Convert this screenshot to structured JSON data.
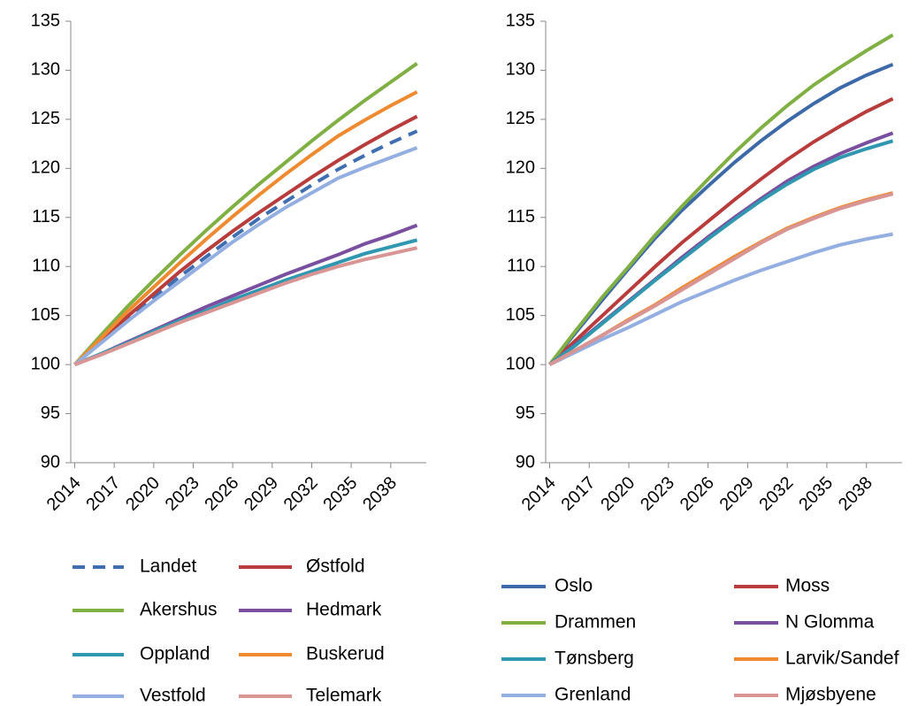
{
  "chart_data": [
    {
      "type": "line",
      "legend": "bottom",
      "x": [
        2014,
        2016,
        2018,
        2020,
        2022,
        2024,
        2026,
        2028,
        2030,
        2032,
        2034,
        2036,
        2038,
        2040
      ],
      "xlim": [
        2013.7,
        2040.7
      ],
      "xticks": [
        2014,
        2017,
        2020,
        2023,
        2026,
        2029,
        2032,
        2035,
        2038
      ],
      "ylim": [
        90,
        135
      ],
      "yticks": [
        90,
        95,
        100,
        105,
        110,
        115,
        120,
        125,
        130,
        135
      ],
      "series": [
        {
          "name": "Landet",
          "color": "#3f6fb0",
          "dashed": true,
          "values": [
            100,
            102.3,
            104.6,
            106.8,
            109.0,
            111.0,
            113.0,
            114.9,
            116.6,
            118.3,
            119.9,
            121.3,
            122.6,
            123.8
          ]
        },
        {
          "name": "Østfold",
          "color": "#b83c3c",
          "values": [
            100,
            102.4,
            104.9,
            107.2,
            109.5,
            111.6,
            113.6,
            115.5,
            117.3,
            119.1,
            120.8,
            122.4,
            123.9,
            125.3
          ]
        },
        {
          "name": "Akershus",
          "color": "#80b044",
          "values": [
            100,
            103,
            105.9,
            108.6,
            111.2,
            113.7,
            116.1,
            118.4,
            120.6,
            122.8,
            124.9,
            126.9,
            128.8,
            130.7
          ]
        },
        {
          "name": "Hedmark",
          "color": "#7a4fa0",
          "values": [
            100,
            101.1,
            102.3,
            103.5,
            104.7,
            105.9,
            107.0,
            108.1,
            109.2,
            110.2,
            111.2,
            112.3,
            113.2,
            114.2
          ]
        },
        {
          "name": "Oppland",
          "color": "#2f97b0",
          "values": [
            100,
            101.1,
            102.2,
            103.4,
            104.5,
            105.5,
            106.6,
            107.6,
            108.6,
            109.5,
            110.4,
            111.3,
            112.0,
            112.7
          ]
        },
        {
          "name": "Buskerud",
          "color": "#f08a30",
          "values": [
            100,
            102.7,
            105.4,
            107.9,
            110.4,
            112.8,
            115.1,
            117.3,
            119.4,
            121.4,
            123.3,
            124.9,
            126.4,
            127.8
          ]
        },
        {
          "name": "Vestfold",
          "color": "#93aee0",
          "values": [
            100,
            102.2,
            104.4,
            106.5,
            108.5,
            110.5,
            112.5,
            114.3,
            116.0,
            117.5,
            119.0,
            120.1,
            121.1,
            122.1
          ]
        },
        {
          "name": "Telemark",
          "color": "#d99494",
          "values": [
            100,
            101,
            102.1,
            103.2,
            104.3,
            105.3,
            106.3,
            107.3,
            108.3,
            109.2,
            110.0,
            110.7,
            111.3,
            111.9
          ]
        }
      ]
    },
    {
      "type": "line",
      "legend": "bottom",
      "x": [
        2014,
        2016,
        2018,
        2020,
        2022,
        2024,
        2026,
        2028,
        2030,
        2032,
        2034,
        2036,
        2038,
        2040
      ],
      "xlim": [
        2013.7,
        2040.7
      ],
      "xticks": [
        2014,
        2017,
        2020,
        2023,
        2026,
        2029,
        2032,
        2035,
        2038
      ],
      "ylim": [
        90,
        135
      ],
      "yticks": [
        90,
        95,
        100,
        105,
        110,
        115,
        120,
        125,
        130,
        135
      ],
      "series": [
        {
          "name": "Oslo",
          "color": "#3c6aa8",
          "values": [
            100,
            103.3,
            106.6,
            109.8,
            112.9,
            115.7,
            118.2,
            120.6,
            122.8,
            124.8,
            126.6,
            128.2,
            129.5,
            130.6
          ]
        },
        {
          "name": "Moss",
          "color": "#b83c3c",
          "values": [
            100,
            102.5,
            105,
            107.5,
            110,
            112.4,
            114.6,
            116.8,
            118.9,
            120.9,
            122.7,
            124.3,
            125.8,
            127.1
          ]
        },
        {
          "name": "Drammen",
          "color": "#80b044",
          "values": [
            100,
            103.5,
            106.9,
            110,
            113.2,
            116.1,
            118.9,
            121.6,
            124.1,
            126.4,
            128.5,
            130.3,
            132.0,
            133.6
          ]
        },
        {
          "name": "N Glomma",
          "color": "#7a4fa0",
          "values": [
            100,
            102.1,
            104.3,
            106.5,
            108.7,
            110.9,
            113,
            115,
            116.9,
            118.7,
            120.2,
            121.5,
            122.6,
            123.6
          ]
        },
        {
          "name": "Tønsberg",
          "color": "#2f97b0",
          "values": [
            100,
            102,
            104.2,
            106.4,
            108.6,
            110.7,
            112.8,
            114.8,
            116.7,
            118.4,
            119.9,
            121.1,
            122.0,
            122.8
          ]
        },
        {
          "name": "Larvik/Sandef",
          "color": "#f08a30",
          "values": [
            100,
            101.5,
            103,
            104.6,
            106.1,
            107.8,
            109.4,
            111,
            112.5,
            113.9,
            115,
            116,
            116.8,
            117.5
          ]
        },
        {
          "name": "Grenland",
          "color": "#93aee0",
          "values": [
            100,
            101.3,
            102.6,
            103.8,
            105.1,
            106.4,
            107.5,
            108.6,
            109.6,
            110.5,
            111.4,
            112.2,
            112.8,
            113.3
          ]
        },
        {
          "name": "Mjøsbyene",
          "color": "#d99494",
          "values": [
            100,
            101.5,
            103,
            104.5,
            106,
            107.6,
            109.2,
            110.8,
            112.4,
            113.8,
            114.9,
            115.9,
            116.7,
            117.4
          ]
        }
      ]
    }
  ]
}
